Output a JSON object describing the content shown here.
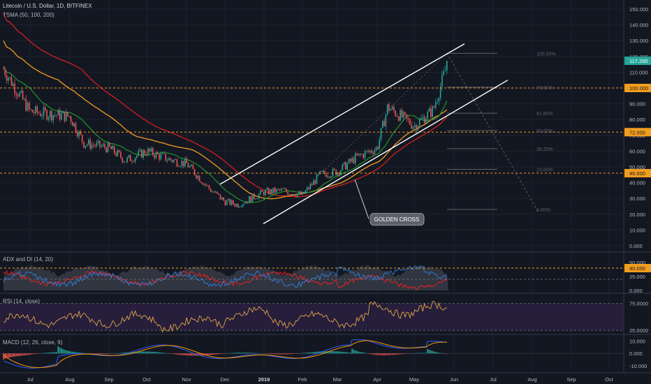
{
  "header": {
    "title": "Litecoin / U.S. Dollar, 1D, BITFINEX",
    "indicator": "TSMA (50, 100, 200)"
  },
  "panes": {
    "adx_label": "ADX and DI (14, 20)",
    "rsi_label": "RSI (14, close)",
    "macd_label": "MACD (12, 26, close, 9)"
  },
  "annotation": {
    "text": "GOLDEN CROSS"
  },
  "colors": {
    "background": "#131722",
    "up": "#26a69a",
    "down": "#ef5350",
    "ma50": "#1f8b2e",
    "ma100": "#f29d1e",
    "ma200": "#d3201e",
    "channel": "#ffffff",
    "hline": "#f29d1e",
    "rsi": "#e0a646",
    "macd": "#2962ff",
    "signal": "#ff9800",
    "price_tag": "#26a69a",
    "level_tag": "#f29d1e"
  },
  "chart_data": [
    {
      "type": "candlestick",
      "title": "Litecoin / U.S. Dollar, 1D, BITFINEX",
      "x_ticks": [
        "Jul",
        "Aug",
        "Sep",
        "Oct",
        "Nov",
        "Dec",
        "2019",
        "Feb",
        "Mar",
        "Apr",
        "May",
        "Jun",
        "Jul",
        "Aug",
        "Sep",
        "Oct"
      ],
      "y_ticks": [
        "0.000",
        "10.000",
        "20.000",
        "30.000",
        "40.000",
        "50.000",
        "60.000",
        "70.000",
        "80.000",
        "90.000",
        "100.000",
        "110.000",
        "120.000",
        "130.000",
        "140.000",
        "150.000"
      ],
      "ylim": [
        0,
        155
      ],
      "last_price": "117.260",
      "horizontal_levels": [
        "100.000",
        "72.000",
        "46.000"
      ],
      "fib_levels": [
        "100.00%",
        "78.60%",
        "61.80%",
        "50.00%",
        "38.20%",
        "23.60%",
        "0.00%"
      ],
      "moving_averages": [
        "50",
        "100",
        "200"
      ],
      "price_anchors": [
        [
          "Jun",
          112
        ],
        [
          "Jul",
          85
        ],
        [
          "Aug",
          82
        ],
        [
          "Aug-mid",
          65
        ],
        [
          "Sep",
          62
        ],
        [
          "Sep-mid",
          54
        ],
        [
          "Oct",
          60
        ],
        [
          "Oct-mid",
          55
        ],
        [
          "Nov",
          52
        ],
        [
          "Nov-mid",
          36
        ],
        [
          "Dec",
          28
        ],
        [
          "Dec-mid",
          26
        ],
        [
          "2019",
          34
        ],
        [
          "Jan-mid",
          35
        ],
        [
          "Feb",
          32
        ],
        [
          "Feb-mid",
          45
        ],
        [
          "Mar",
          47
        ],
        [
          "Mar-mid",
          56
        ],
        [
          "Apr",
          62
        ],
        [
          "Apr-mid",
          88
        ],
        [
          "May",
          76
        ],
        [
          "May-mid",
          86
        ],
        [
          "May-end",
          117.26
        ]
      ],
      "annotations": [
        "GOLDEN CROSS"
      ]
    },
    {
      "type": "line",
      "title": "ADX and DI (14, 20)",
      "y_ticks": [
        "0.000",
        "25.000",
        "50.000"
      ],
      "ylim": [
        0,
        60
      ],
      "highlight_level": "40.000"
    },
    {
      "type": "line",
      "title": "RSI (14, close)",
      "y_ticks": [
        "25.0000",
        "75.0000"
      ],
      "ylim": [
        20,
        90
      ]
    },
    {
      "type": "line",
      "title": "MACD (12, 26, close, 9)",
      "y_ticks": [
        "-10.000",
        "0.000",
        "10.000"
      ],
      "ylim": [
        -14,
        12
      ]
    }
  ]
}
